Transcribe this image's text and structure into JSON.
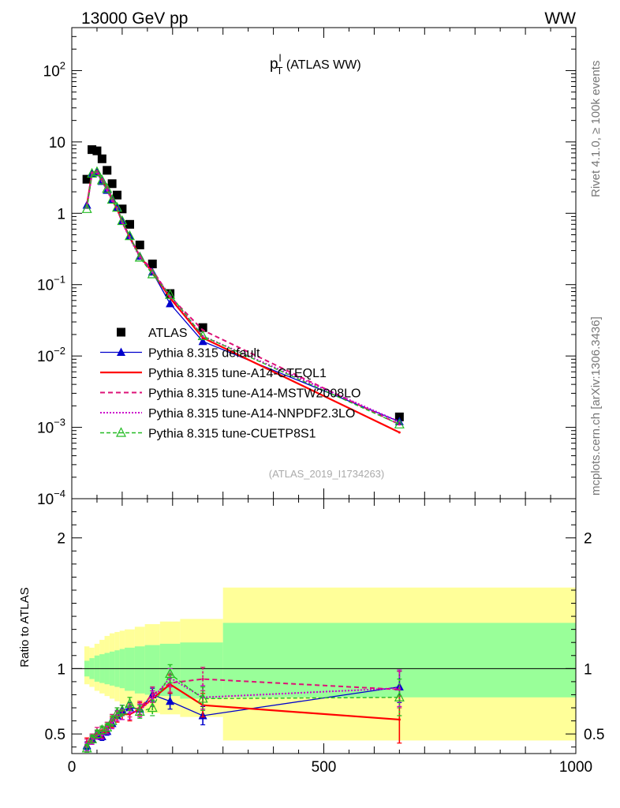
{
  "header": {
    "left": "13000 GeV pp",
    "right": "WW",
    "side_top": "Rivet 4.1.0, ≥ 100k events",
    "side_bottom": "mcplots.cern.ch [arXiv:1306.3436]"
  },
  "chart_data": [
    {
      "type": "scatter",
      "title": "pT^l (ATLAS WW)",
      "title_main": "p",
      "title_sup": "l",
      "title_sub": "T",
      "title_rest": " (ATLAS WW)",
      "analysis_tag": "(ATLAS_2019_I1734263)",
      "xlabel": "",
      "ylabel": "",
      "xlim": [
        0,
        1000
      ],
      "ylim": [
        0.0001,
        400
      ],
      "yscale": "log",
      "ytick_labels": [
        {
          "base": "10",
          "exp": "2",
          "value": 100
        },
        {
          "base": "10",
          "exp": "",
          "value": 10
        },
        {
          "base": "1",
          "exp": "",
          "value": 1
        },
        {
          "base": "10",
          "exp": "−1",
          "value": 0.1
        },
        {
          "base": "10",
          "exp": "−2",
          "value": 0.01
        },
        {
          "base": "10",
          "exp": "−3",
          "value": 0.001
        },
        {
          "base": "10",
          "exp": "−4",
          "value": 0.0001
        }
      ],
      "x": [
        30,
        40,
        50,
        60,
        70,
        80,
        90,
        100,
        115,
        135,
        160,
        195,
        260,
        650
      ],
      "series": [
        {
          "name": "ATLAS",
          "style": "data",
          "color": "#000000",
          "values": [
            3.0,
            7.8,
            7.5,
            5.8,
            4.0,
            2.6,
            1.8,
            1.15,
            0.7,
            0.36,
            0.195,
            0.075,
            0.025,
            0.0014
          ]
        },
        {
          "name": "Pythia 8.315 default",
          "style": "default",
          "color": "#0000cc",
          "values": [
            1.3,
            3.6,
            3.7,
            2.8,
            2.1,
            1.55,
            1.2,
            0.78,
            0.48,
            0.25,
            0.15,
            0.054,
            0.016,
            0.0012
          ]
        },
        {
          "name": "Pythia 8.315 tune-A14-CTEQL1",
          "style": "cteq",
          "color": "#ff0000",
          "values": [
            1.3,
            3.6,
            3.8,
            2.9,
            2.2,
            1.55,
            1.15,
            0.76,
            0.46,
            0.25,
            0.15,
            0.065,
            0.018,
            0.00085
          ]
        },
        {
          "name": "Pythia 8.315 tune-A14-MSTW2008LO",
          "style": "mstw",
          "color": "#dd1177",
          "values": [
            1.3,
            3.7,
            3.9,
            3.0,
            2.3,
            1.6,
            1.2,
            0.78,
            0.47,
            0.25,
            0.16,
            0.068,
            0.023,
            0.0011
          ]
        },
        {
          "name": "Pythia 8.315 tune-A14-NNPDF2.3LO",
          "style": "nnpdf",
          "color": "#cc00cc",
          "values": [
            1.2,
            3.5,
            3.7,
            2.8,
            2.1,
            1.5,
            1.15,
            0.74,
            0.45,
            0.24,
            0.15,
            0.07,
            0.019,
            0.0012
          ]
        },
        {
          "name": "Pythia 8.315 tune-CUETP8S1",
          "style": "cuetp",
          "color": "#22bb22",
          "values": [
            1.15,
            3.6,
            3.8,
            2.9,
            2.2,
            1.55,
            1.2,
            0.78,
            0.48,
            0.24,
            0.14,
            0.072,
            0.019,
            0.0011
          ]
        }
      ]
    },
    {
      "type": "line",
      "title": "",
      "xlabel": "",
      "ylabel": "Ratio to ATLAS",
      "xlim": [
        0,
        1000
      ],
      "ylim": [
        0.35,
        2.3
      ],
      "yticks": [
        0.5,
        1,
        2
      ],
      "ytick_labels": [
        "0.5",
        "1",
        "2"
      ],
      "xticks": [
        0,
        500,
        1000
      ],
      "xtick_labels": [
        "0",
        "500",
        "1000"
      ],
      "band_edges": [
        25,
        35,
        45,
        55,
        65,
        75,
        85,
        95,
        105,
        125,
        145,
        175,
        215,
        300,
        1000
      ],
      "green_low": [
        0.94,
        0.92,
        0.9,
        0.89,
        0.88,
        0.87,
        0.86,
        0.85,
        0.83,
        0.81,
        0.8,
        0.79,
        0.77,
        0.78
      ],
      "green_high": [
        1.06,
        1.08,
        1.1,
        1.11,
        1.12,
        1.13,
        1.14,
        1.15,
        1.16,
        1.17,
        1.18,
        1.19,
        1.2,
        1.35
      ],
      "yellow_low": [
        0.88,
        0.86,
        0.83,
        0.81,
        0.79,
        0.77,
        0.75,
        0.73,
        0.71,
        0.68,
        0.66,
        0.65,
        0.63,
        0.45
      ],
      "yellow_high": [
        1.17,
        1.16,
        1.19,
        1.22,
        1.25,
        1.27,
        1.28,
        1.29,
        1.3,
        1.32,
        1.34,
        1.36,
        1.38,
        1.62
      ],
      "x": [
        30,
        40,
        50,
        60,
        70,
        80,
        90,
        100,
        115,
        135,
        160,
        195,
        260,
        650
      ],
      "series": [
        {
          "name": "Pythia 8.315 default",
          "style": "default",
          "color": "#0000cc",
          "values": [
            0.41,
            0.46,
            0.49,
            0.48,
            0.52,
            0.58,
            0.64,
            0.68,
            0.7,
            0.69,
            0.8,
            0.75,
            0.64,
            0.86
          ],
          "errors": [
            0.03,
            0.03,
            0.03,
            0.03,
            0.03,
            0.03,
            0.04,
            0.04,
            0.04,
            0.04,
            0.05,
            0.06,
            0.07,
            0.12
          ]
        },
        {
          "name": "Pythia 8.315 tune-A14-CTEQL1",
          "style": "cteq",
          "color": "#ff0000",
          "values": [
            0.44,
            0.45,
            0.5,
            0.5,
            0.54,
            0.59,
            0.63,
            0.65,
            0.65,
            0.69,
            0.77,
            0.88,
            0.72,
            0.61
          ],
          "errors": [
            0.03,
            0.03,
            0.03,
            0.03,
            0.03,
            0.04,
            0.04,
            0.04,
            0.05,
            0.05,
            0.06,
            0.07,
            0.09,
            0.18
          ]
        },
        {
          "name": "Pythia 8.315 tune-A14-MSTW2008LO",
          "style": "mstw",
          "color": "#dd1177",
          "values": [
            0.43,
            0.47,
            0.52,
            0.52,
            0.56,
            0.61,
            0.66,
            0.68,
            0.68,
            0.7,
            0.8,
            0.89,
            0.92,
            0.84
          ],
          "errors": [
            0.03,
            0.03,
            0.03,
            0.03,
            0.03,
            0.04,
            0.04,
            0.04,
            0.05,
            0.05,
            0.06,
            0.07,
            0.09,
            0.14
          ]
        },
        {
          "name": "Pythia 8.315 tune-A14-NNPDF2.3LO",
          "style": "nnpdf",
          "color": "#cc00cc",
          "values": [
            0.4,
            0.45,
            0.49,
            0.49,
            0.53,
            0.58,
            0.64,
            0.65,
            0.66,
            0.68,
            0.77,
            0.93,
            0.78,
            0.85
          ],
          "errors": [
            0.03,
            0.03,
            0.03,
            0.03,
            0.03,
            0.04,
            0.04,
            0.04,
            0.05,
            0.05,
            0.06,
            0.07,
            0.09,
            0.14
          ]
        },
        {
          "name": "Pythia 8.315 tune-CUETP8S1",
          "style": "cuetp",
          "color": "#22bb22",
          "values": [
            0.39,
            0.46,
            0.5,
            0.53,
            0.55,
            0.6,
            0.66,
            0.68,
            0.73,
            0.67,
            0.7,
            0.96,
            0.77,
            0.78
          ],
          "errors": [
            0.03,
            0.03,
            0.03,
            0.03,
            0.03,
            0.04,
            0.04,
            0.04,
            0.05,
            0.05,
            0.06,
            0.07,
            0.09,
            0.14
          ]
        }
      ]
    }
  ]
}
